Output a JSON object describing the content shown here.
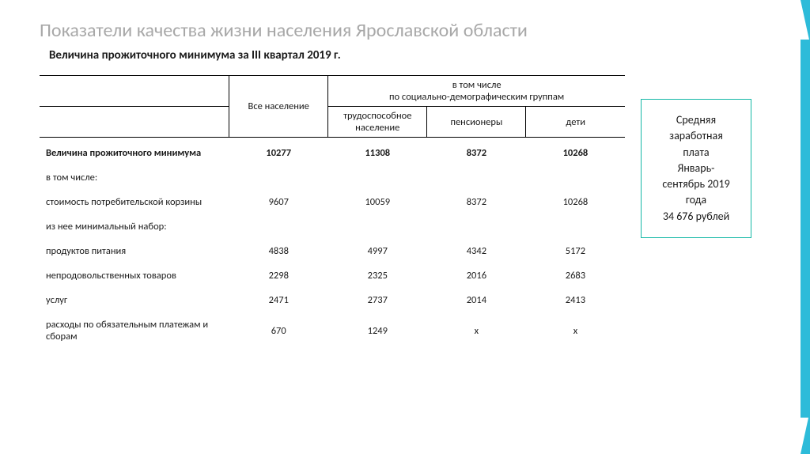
{
  "slide": {
    "title": "Показатели качества жизни населения Ярославской области",
    "subtitle": "Величина прожиточного минимума за III квартал 2019 г."
  },
  "table": {
    "header": {
      "col_all": "Все население",
      "group_header": "в том числе\nпо социально-демографическим группам",
      "col_work": "трудоспособное население",
      "col_pens": "пенсионеры",
      "col_child": "дети"
    },
    "rows": {
      "main": {
        "label": "Величина прожиточного минимума",
        "all": "10277",
        "work": "11308",
        "pens": "8372",
        "child": "10268"
      },
      "incl": {
        "label": "в том числе:"
      },
      "basket": {
        "label": "стоимость потребительской корзины",
        "all": "9607",
        "work": "10059",
        "pens": "8372",
        "child": "10268"
      },
      "minset": {
        "label": "из нее минимальный набор:"
      },
      "food": {
        "label": "продуктов питания",
        "all": "4838",
        "work": "4997",
        "pens": "4342",
        "child": "5172"
      },
      "nonfood": {
        "label": "непродовольственных товаров",
        "all": "2298",
        "work": "2325",
        "pens": "2016",
        "child": "2683"
      },
      "services": {
        "label": "услуг",
        "all": "2471",
        "work": "2737",
        "pens": "2014",
        "child": "2413"
      },
      "mandatory": {
        "label": "расходы по обязательным платежам и сборам",
        "all": "670",
        "work": "1249",
        "pens": "x",
        "child": "x"
      }
    }
  },
  "sidebox": {
    "line1": "Средняя",
    "line2": "заработная",
    "line3": "плата",
    "line4": "Январь-",
    "line5": "сентябрь 2019",
    "line6": "года",
    "line7": "34 676 рублей"
  },
  "colors": {
    "accent": "#2dbbd9",
    "title_gray": "#a8a8a8",
    "text": "#1a1a1a",
    "sidebox_border": "#14b8a6"
  }
}
